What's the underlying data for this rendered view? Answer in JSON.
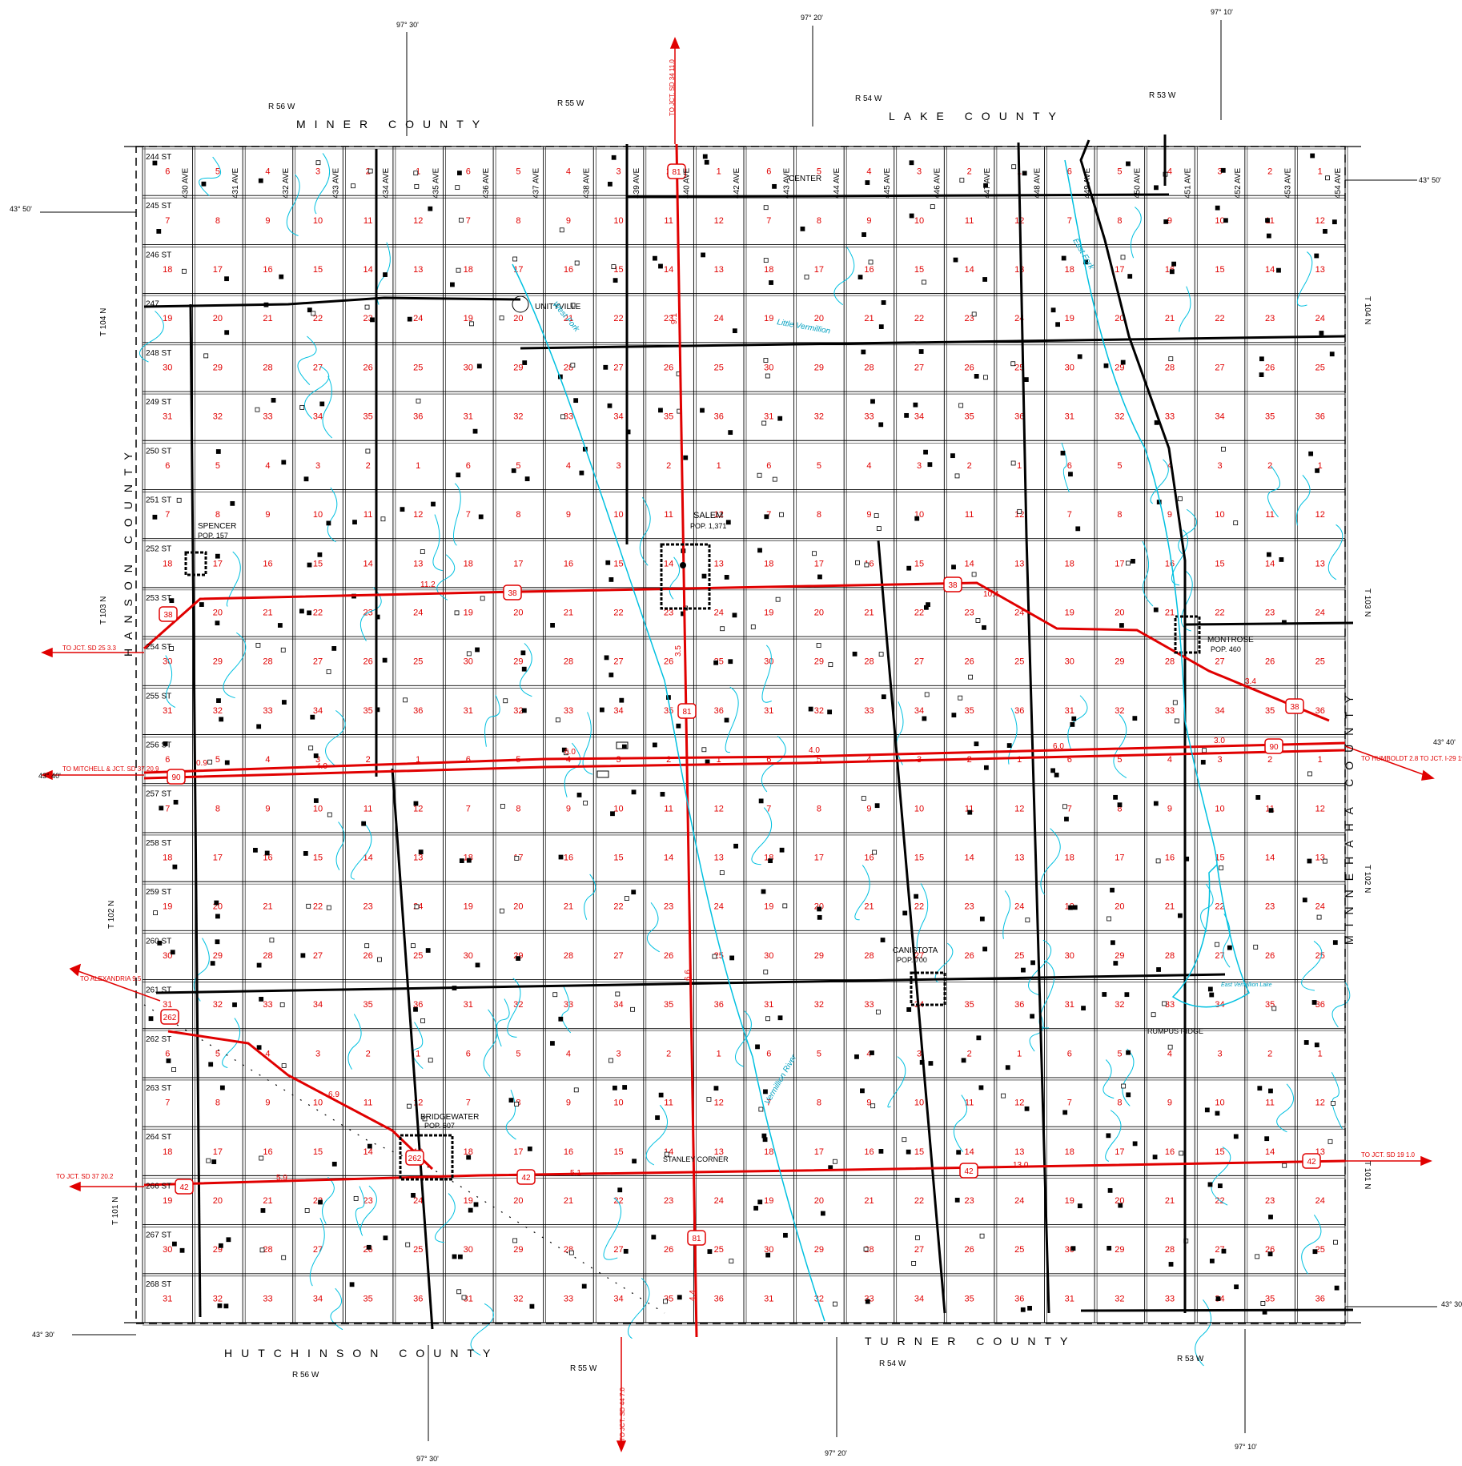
{
  "counties": {
    "north": [
      "MINER COUNTY",
      "LAKE COUNTY"
    ],
    "south": [
      "HUTCHINSON COUNTY",
      "TURNER COUNTY"
    ],
    "west": "HANSON COUNTY",
    "east": "MINNEHAHA COUNTY"
  },
  "ranges": [
    "R 56 W",
    "R 55 W",
    "R 54 W",
    "R 53 W"
  ],
  "townships": [
    "T 104 N",
    "T 103 N",
    "T 102 N",
    "T 101 N"
  ],
  "longitudes": [
    "97° 30'",
    "97° 20'",
    "97° 10'"
  ],
  "latitudes": [
    "43° 50'",
    "43° 40'",
    "43° 30'"
  ],
  "streets": [
    "244 ST",
    "245 ST",
    "246 ST",
    "247",
    "248 ST",
    "249 ST",
    "250 ST",
    "251 ST",
    "252 ST",
    "253 ST",
    "254 ST",
    "255 ST",
    "256 ST",
    "257 ST",
    "258 ST",
    "259 ST",
    "260 ST",
    "261 ST",
    "262 ST",
    "263 ST",
    "264 ST",
    "266 ST",
    "267 ST",
    "268 ST"
  ],
  "avenues": [
    "430 AVE",
    "431 AVE",
    "432 AVE",
    "433 AVE",
    "434 AVE",
    "435 AVE",
    "436 AVE",
    "437 AVE",
    "438 AVE",
    "439 AVE",
    "440 AVE",
    "442 AVE",
    "443 AVE",
    "444 AVE",
    "445 AVE",
    "446 AVE",
    "447 AVE",
    "448 AVE",
    "449 AVE",
    "450 AVE",
    "451 AVE",
    "452 AVE",
    "453 AVE",
    "454 AVE"
  ],
  "towns": [
    {
      "name": "UNITYVILLE",
      "pop": ""
    },
    {
      "name": "CENTER",
      "pop": ""
    },
    {
      "name": "SPENCER",
      "pop": "POP. 157"
    },
    {
      "name": "SALEM",
      "pop": "POP. 1,371"
    },
    {
      "name": "MONTROSE",
      "pop": "POP. 460"
    },
    {
      "name": "CANISTOTA",
      "pop": "POP. 700"
    },
    {
      "name": "RUMPUS RIDGE",
      "pop": ""
    },
    {
      "name": "BRIDGEWATER",
      "pop": "POP. 607"
    },
    {
      "name": "STANLEY CORNER",
      "pop": ""
    }
  ],
  "routes": {
    "us81_north": "TO JCT. SD 34 11.0",
    "sd44_south": "TO JCT. SD 44 7.0",
    "sd25_west": "TO JCT. SD 25 3.3",
    "mitchell_west": "TO MITCHELL & JCT. SD 37 20.9",
    "humboldt_east": "TO HUMBOLDT 2.8 TO JCT. I-29 19.5",
    "alexandria": "TO ALEXANDRIA 9.5",
    "sd37_west": "TO JCT. SD 37 20.2",
    "sd19_east": "TO JCT. SD 19 1.0"
  },
  "shields": [
    "81",
    "38",
    "90",
    "262",
    "42"
  ],
  "mileages": [
    "9.1",
    "3.5",
    "6.6",
    "4.4",
    "11.2",
    "10.4",
    "3.4",
    "0.9",
    "4.0",
    "6.0",
    "3.0",
    "6.9",
    "5.9",
    "5.1",
    "13.0"
  ],
  "water": [
    "West Fork",
    "East Fork",
    "Little Vermillion",
    "Vermillion River",
    "East Vermillion Lake"
  ],
  "colors": {
    "roads_state": "#e00000",
    "water": "#00c0e0",
    "grid": "#000000"
  }
}
